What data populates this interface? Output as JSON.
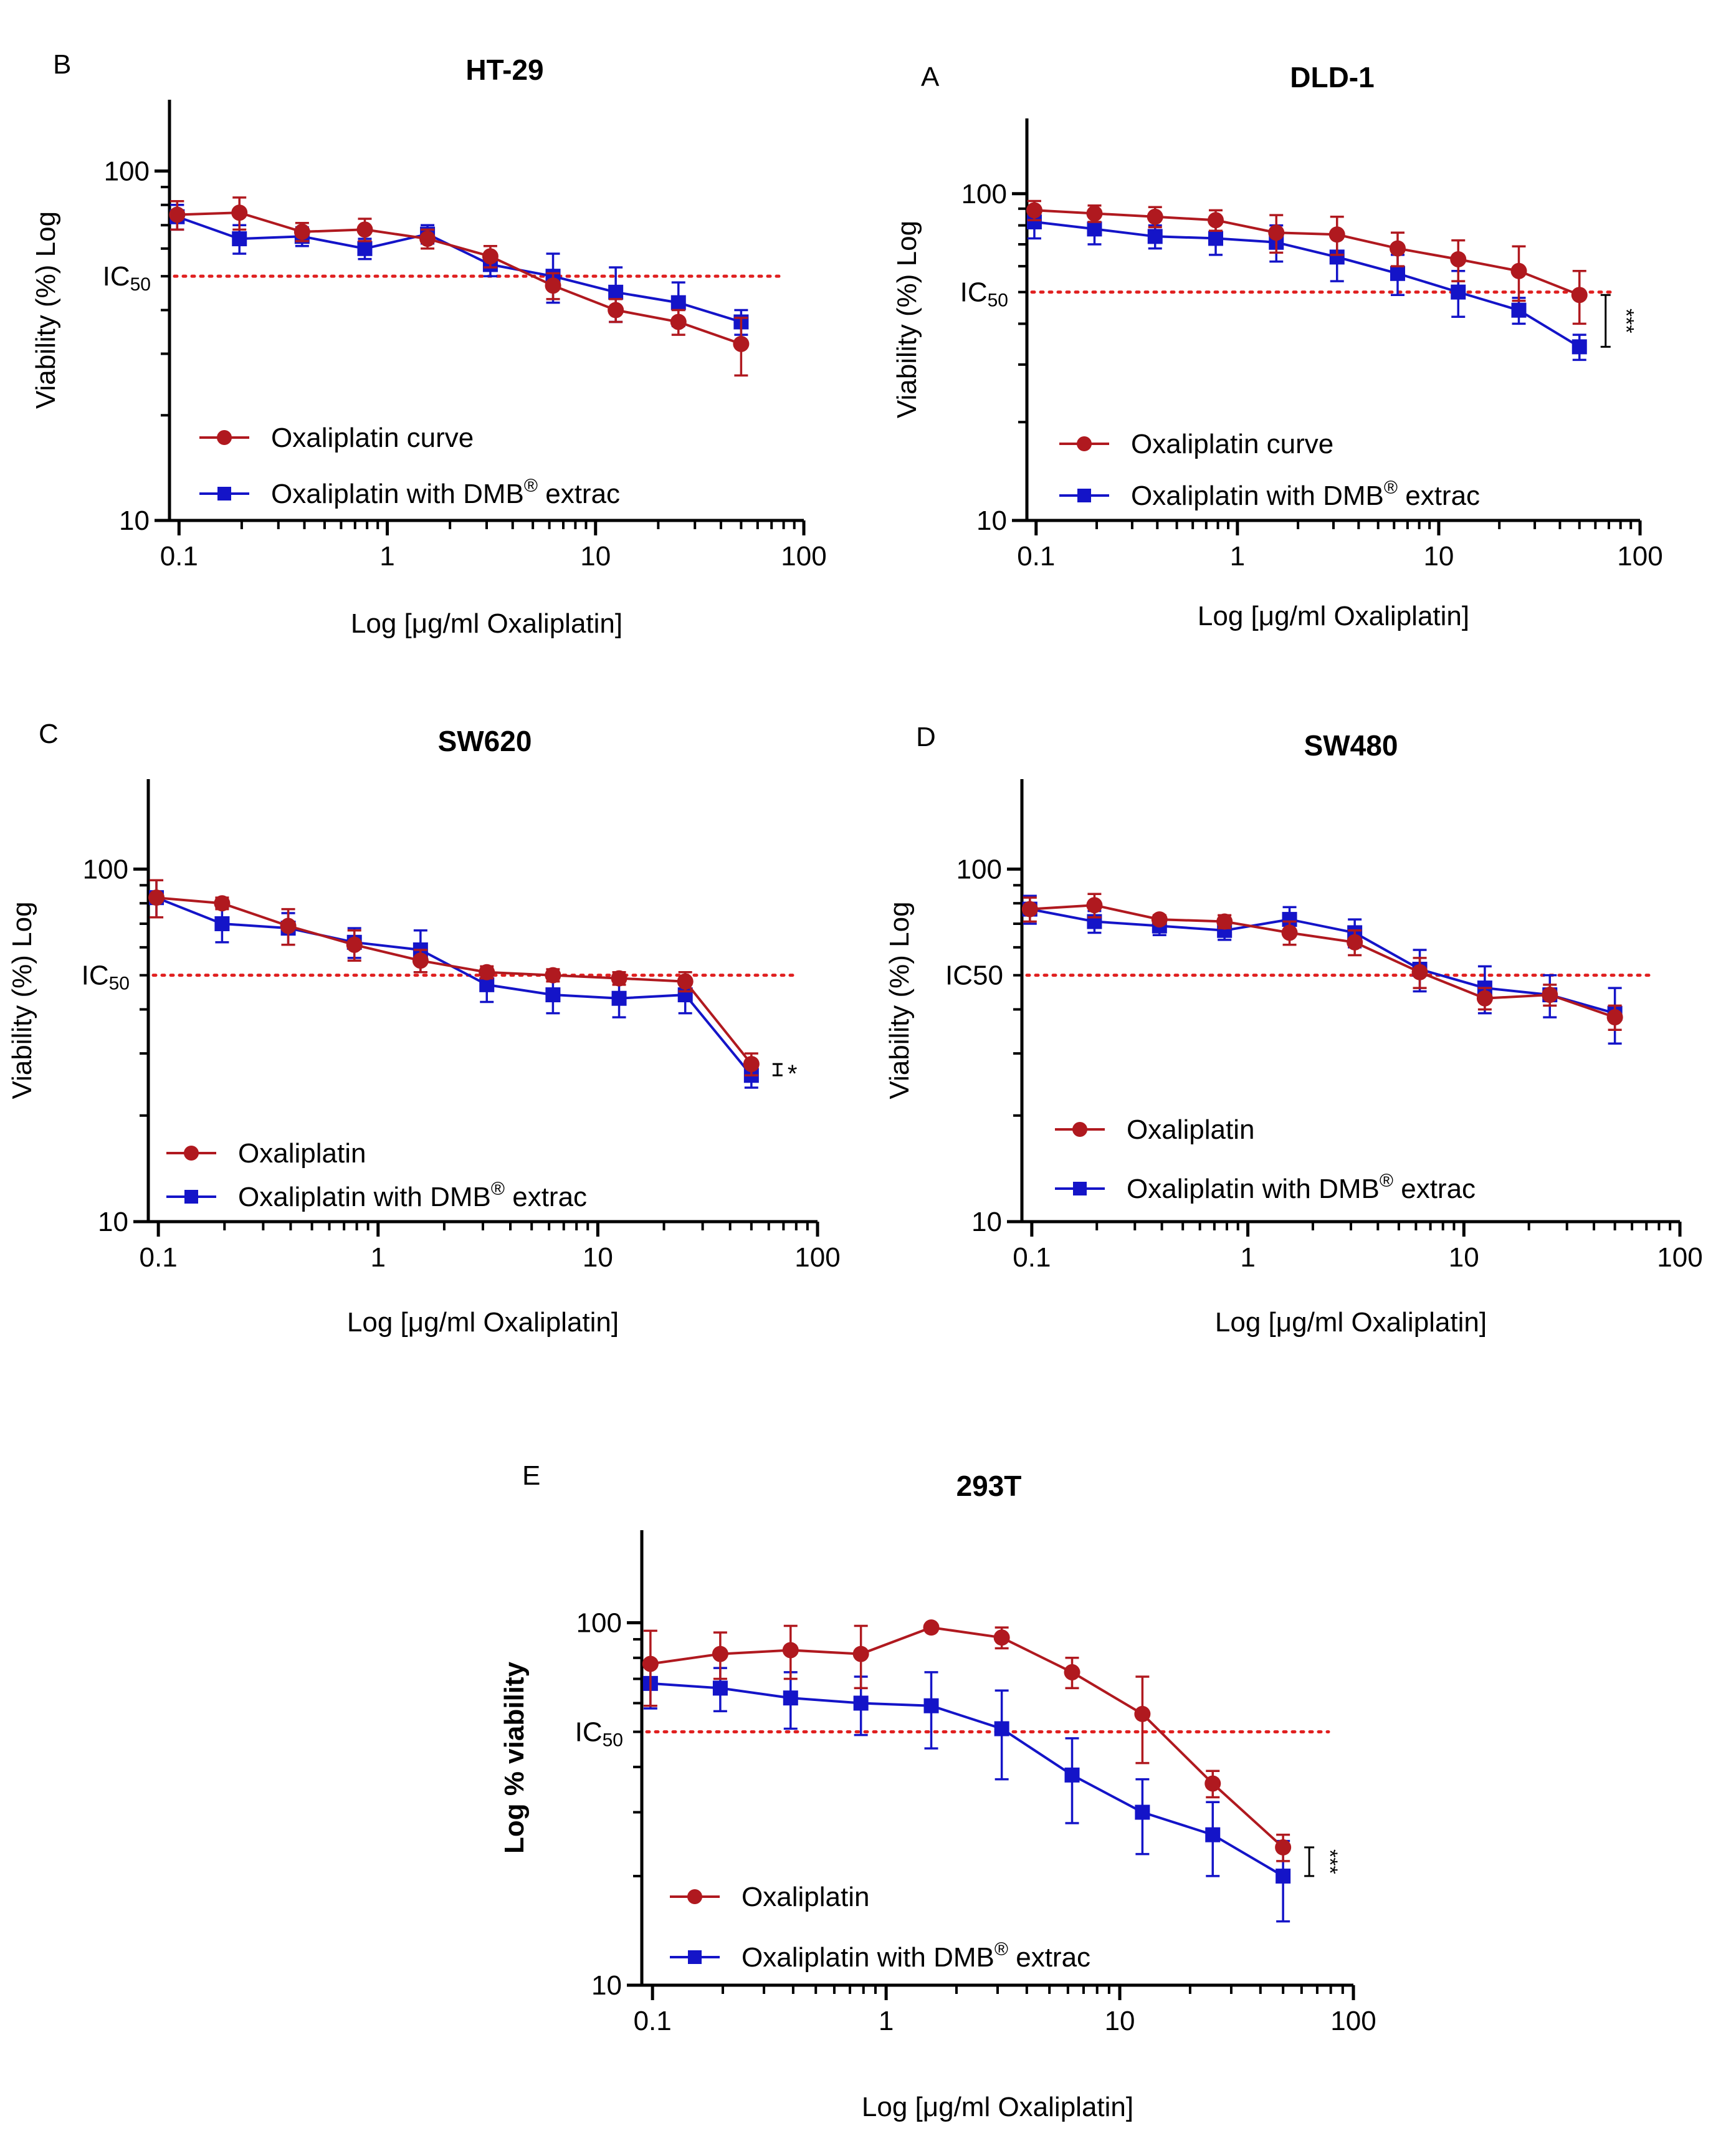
{
  "colors": {
    "oxaliplatin": "#b0191f",
    "dmb": "#1414c8",
    "ic50_line": "#e02020",
    "axis": "#000000"
  },
  "chart_data": [
    {
      "panel_letter": "B",
      "type": "line",
      "title": "HT-29",
      "xlabel": "Log [μg/ml Oxaliplatin]",
      "ylabel": "Viability (%) Log",
      "ylabel_bold": false,
      "xscale": "log",
      "yscale": "log",
      "xlim": [
        0.09,
        100
      ],
      "ylim": [
        10,
        160
      ],
      "x_ticks": [
        "0.1",
        "1",
        "10",
        "100"
      ],
      "y_ticks": [
        "10",
        "100"
      ],
      "ic50": {
        "value": 50,
        "label": "IC",
        "sub": "50"
      },
      "legend": {
        "location": "lower-left"
      },
      "significance": "",
      "series": [
        {
          "name": "Oxaliplatin curve",
          "marker": "circle",
          "x": [
            0.098,
            0.195,
            0.39,
            0.78,
            1.56,
            3.125,
            6.25,
            12.5,
            25,
            50
          ],
          "y": [
            75,
            76,
            67,
            68,
            64,
            57,
            47,
            40,
            37,
            32
          ],
          "err": [
            7,
            8,
            4,
            5,
            4,
            4,
            4,
            3,
            3,
            6
          ]
        },
        {
          "name": "Oxaliplatin with DMB® extrac",
          "marker": "square",
          "x": [
            0.098,
            0.195,
            0.39,
            0.78,
            1.56,
            3.125,
            6.25,
            12.5,
            25,
            50
          ],
          "y": [
            74,
            64,
            65,
            60,
            66,
            54,
            50,
            45,
            42,
            37
          ],
          "err": [
            6,
            6,
            4,
            4,
            4,
            4,
            8,
            8,
            6,
            3
          ]
        }
      ]
    },
    {
      "panel_letter": "A",
      "type": "line",
      "title": "DLD-1",
      "xlabel": "Log [μg/ml Oxaliplatin]",
      "ylabel": "Viability (%) Log",
      "ylabel_bold": false,
      "xscale": "log",
      "yscale": "log",
      "xlim": [
        0.09,
        100
      ],
      "ylim": [
        10,
        170
      ],
      "x_ticks": [
        "0.1",
        "1",
        "10",
        "100"
      ],
      "y_ticks": [
        "10",
        "100"
      ],
      "ic50": {
        "value": 50,
        "label": "IC",
        "sub": "50"
      },
      "legend": {
        "location": "lower-left"
      },
      "significance": "***",
      "series": [
        {
          "name": "Oxaliplatin curve",
          "marker": "circle",
          "x": [
            0.098,
            0.195,
            0.39,
            0.78,
            1.56,
            3.125,
            6.25,
            12.5,
            25,
            50
          ],
          "y": [
            89,
            87,
            85,
            83,
            76,
            75,
            68,
            63,
            58,
            49
          ],
          "err": [
            6,
            5,
            6,
            6,
            10,
            10,
            8,
            9,
            11,
            9
          ]
        },
        {
          "name": "Oxaliplatin with DMB® extrac",
          "marker": "square",
          "x": [
            0.098,
            0.195,
            0.39,
            0.78,
            1.56,
            3.125,
            6.25,
            12.5,
            25,
            50
          ],
          "y": [
            82,
            78,
            74,
            73,
            71,
            64,
            57,
            50,
            44,
            34
          ],
          "err": [
            9,
            8,
            6,
            8,
            9,
            10,
            8,
            8,
            4,
            3
          ]
        }
      ]
    },
    {
      "panel_letter": "C",
      "type": "line",
      "title": "SW620",
      "xlabel": "Log [μg/ml Oxaliplatin]",
      "ylabel": "Viability (%) Log",
      "ylabel_bold": false,
      "xscale": "log",
      "yscale": "log",
      "xlim": [
        0.09,
        100
      ],
      "ylim": [
        10,
        180
      ],
      "x_ticks": [
        "0.1",
        "1",
        "10",
        "100"
      ],
      "y_ticks": [
        "10",
        "100"
      ],
      "ic50": {
        "value": 50,
        "label": "IC",
        "sub": "50"
      },
      "legend": {
        "location": "lower-left"
      },
      "significance": "*",
      "series": [
        {
          "name": "Oxaliplatin",
          "marker": "circle",
          "x": [
            0.098,
            0.195,
            0.39,
            0.78,
            1.56,
            3.125,
            6.25,
            12.5,
            25,
            50
          ],
          "y": [
            83,
            80,
            69,
            61,
            55,
            51,
            50,
            49,
            48,
            28
          ],
          "err": [
            10,
            3,
            8,
            6,
            4,
            2,
            2,
            2,
            3,
            2
          ]
        },
        {
          "name": "Oxaliplatin with DMB® extrac",
          "marker": "square",
          "x": [
            0.098,
            0.195,
            0.39,
            0.78,
            1.56,
            3.125,
            6.25,
            12.5,
            25,
            50
          ],
          "y": [
            83,
            70,
            68,
            62,
            59,
            47,
            44,
            43,
            44,
            26
          ],
          "err": [
            10,
            8,
            7,
            6,
            8,
            5,
            5,
            5,
            5,
            2
          ]
        }
      ]
    },
    {
      "panel_letter": "D",
      "type": "line",
      "title": "SW480",
      "xlabel": "Log [μg/ml Oxaliplatin]",
      "ylabel": "Viability (%) Log",
      "ylabel_bold": false,
      "xscale": "log",
      "yscale": "log",
      "xlim": [
        0.09,
        100
      ],
      "ylim": [
        10,
        180
      ],
      "x_ticks": [
        "0.1",
        "1",
        "10",
        "100"
      ],
      "y_ticks": [
        "10",
        "100"
      ],
      "ic50": {
        "value": 50,
        "label": "IC50",
        "sub": ""
      },
      "legend": {
        "location": "lower-left"
      },
      "significance": "",
      "series": [
        {
          "name": "Oxaliplatin",
          "marker": "circle",
          "x": [
            0.098,
            0.195,
            0.39,
            0.78,
            1.56,
            3.125,
            6.25,
            12.5,
            25,
            50
          ],
          "y": [
            77,
            79,
            72,
            71,
            66,
            62,
            51,
            43,
            44,
            38
          ],
          "err": [
            6,
            6,
            2,
            3,
            5,
            5,
            5,
            3,
            3,
            3
          ]
        },
        {
          "name": "Oxaliplatin with DMB® extrac",
          "marker": "square",
          "x": [
            0.098,
            0.195,
            0.39,
            0.78,
            1.56,
            3.125,
            6.25,
            12.5,
            25,
            50
          ],
          "y": [
            77,
            71,
            69,
            67,
            72,
            66,
            52,
            46,
            44,
            39
          ],
          "err": [
            7,
            5,
            4,
            4,
            6,
            6,
            7,
            7,
            6,
            7
          ]
        }
      ]
    },
    {
      "panel_letter": "E",
      "type": "line",
      "title": "293T",
      "xlabel": "Log [μg/ml Oxaliplatin]",
      "ylabel": "Log % viability",
      "ylabel_bold": true,
      "xscale": "log",
      "yscale": "log",
      "xlim": [
        0.09,
        100
      ],
      "ylim": [
        10,
        180
      ],
      "x_ticks": [
        "0.1",
        "1",
        "10",
        "100"
      ],
      "y_ticks": [
        "10",
        "100"
      ],
      "ic50": {
        "value": 50,
        "label": "IC",
        "sub": "50"
      },
      "legend": {
        "location": "lower-left"
      },
      "significance": "***",
      "series": [
        {
          "name": "Oxaliplatin",
          "marker": "circle",
          "x": [
            0.098,
            0.195,
            0.39,
            0.78,
            1.56,
            3.125,
            6.25,
            12.5,
            25,
            50
          ],
          "y": [
            77,
            82,
            84,
            82,
            97,
            91,
            73,
            56,
            36,
            24
          ],
          "err": [
            18,
            12,
            14,
            16,
            1,
            6,
            7,
            15,
            3,
            2
          ]
        },
        {
          "name": "Oxaliplatin with DMB® extrac",
          "marker": "square",
          "x": [
            0.098,
            0.195,
            0.39,
            0.78,
            1.56,
            3.125,
            6.25,
            12.5,
            25,
            50
          ],
          "y": [
            68,
            66,
            62,
            60,
            59,
            51,
            38,
            30,
            26,
            20
          ],
          "err": [
            10,
            9,
            11,
            11,
            14,
            14,
            10,
            7,
            6,
            5
          ]
        }
      ]
    }
  ]
}
